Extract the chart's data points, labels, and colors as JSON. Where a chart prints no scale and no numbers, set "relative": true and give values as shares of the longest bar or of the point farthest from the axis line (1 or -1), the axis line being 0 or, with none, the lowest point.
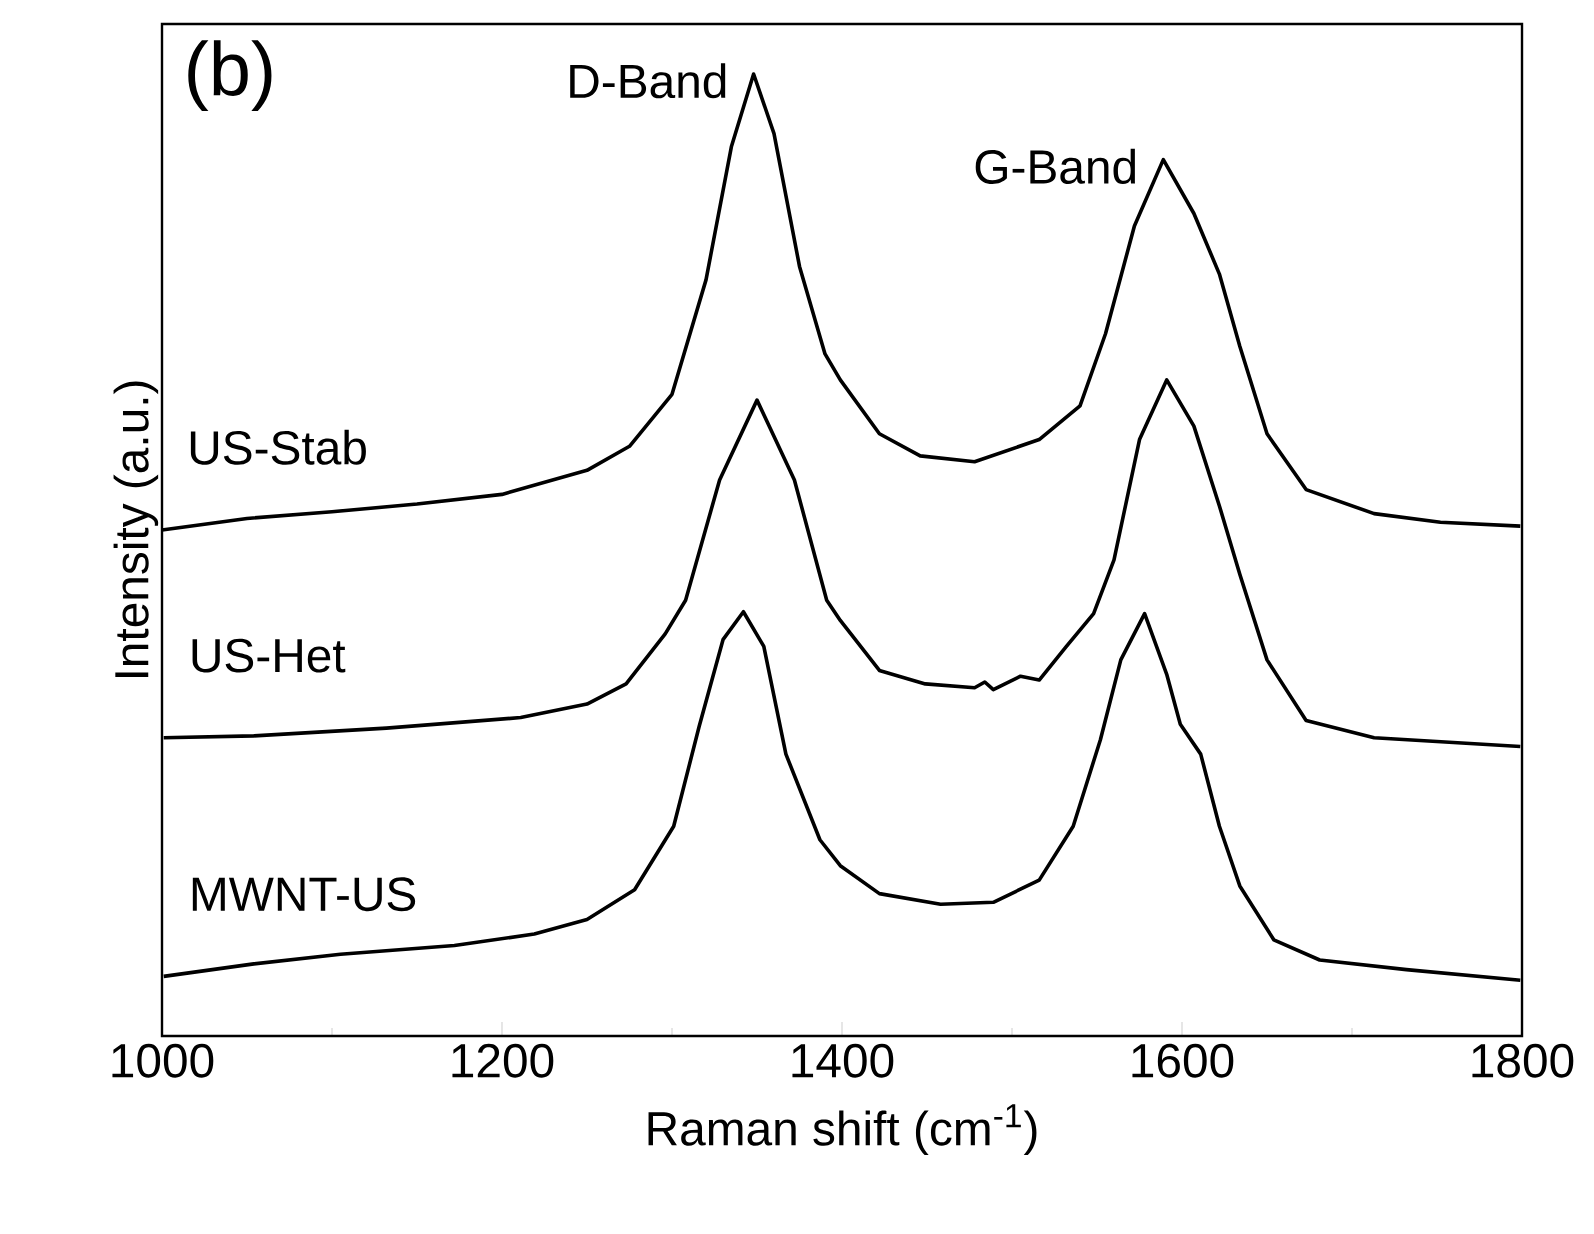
{
  "chart_data": {
    "type": "line",
    "relative": true,
    "marker": "none",
    "xlabel": "Raman shift (cm$^{-1}$)",
    "ylabel": "Intensity (a.u.)",
    "xlim": [
      1000,
      1800
    ],
    "xticks": [
      1000,
      1200,
      1400,
      1600,
      1800
    ],
    "annotations": [
      "(b)",
      {
        "text": "D-Band",
        "x": 1348,
        "y": 1.0
      },
      {
        "text": "G-Band",
        "x": 1589,
        "y": 0.911
      }
    ],
    "series": [
      {
        "name": "US-Stab",
        "color": "#000000",
        "x": [
          1000,
          1050,
          1100,
          1150,
          1200,
          1250,
          1275,
          1300,
          1320,
          1335,
          1348,
          1360,
          1375,
          1390,
          1399,
          1422,
          1446,
          1478,
          1516,
          1540,
          1555,
          1572,
          1589,
          1607,
          1622,
          1634,
          1650,
          1673,
          1713,
          1752,
          1799
        ],
        "values": [
          0.526,
          0.538,
          0.545,
          0.553,
          0.563,
          0.588,
          0.613,
          0.667,
          0.786,
          0.925,
          1.0,
          0.938,
          0.8,
          0.709,
          0.682,
          0.626,
          0.603,
          0.597,
          0.62,
          0.655,
          0.73,
          0.842,
          0.911,
          0.855,
          0.792,
          0.717,
          0.626,
          0.568,
          0.543,
          0.534,
          0.53
        ]
      },
      {
        "name": "US-Het",
        "color": "#000000",
        "x": [
          1001,
          1054,
          1132,
          1211,
          1250,
          1273,
          1296,
          1308,
          1328,
          1350,
          1372,
          1391,
          1399,
          1422,
          1449,
          1478,
          1484,
          1489,
          1505,
          1516,
          1532,
          1548,
          1560,
          1575,
          1591,
          1607,
          1622,
          1634,
          1650,
          1673,
          1713,
          1799
        ],
        "values": [
          0.31,
          0.312,
          0.32,
          0.331,
          0.345,
          0.366,
          0.418,
          0.453,
          0.578,
          0.661,
          0.578,
          0.453,
          0.432,
          0.38,
          0.366,
          0.362,
          0.368,
          0.36,
          0.374,
          0.37,
          0.405,
          0.439,
          0.495,
          0.62,
          0.682,
          0.634,
          0.551,
          0.48,
          0.391,
          0.328,
          0.31,
          0.301
        ]
      },
      {
        "name": "MWNT-US",
        "color": "#000000",
        "x": [
          1001,
          1054,
          1105,
          1172,
          1219,
          1250,
          1278,
          1301,
          1316,
          1330,
          1342,
          1354,
          1367,
          1387,
          1399,
          1422,
          1458,
          1489,
          1516,
          1536,
          1552,
          1564,
          1578,
          1591,
          1599,
          1611,
          1622,
          1634,
          1654,
          1681,
          1732,
          1799
        ],
        "values": [
          0.062,
          0.075,
          0.085,
          0.094,
          0.106,
          0.121,
          0.152,
          0.218,
          0.322,
          0.412,
          0.441,
          0.405,
          0.293,
          0.204,
          0.177,
          0.148,
          0.137,
          0.139,
          0.162,
          0.218,
          0.308,
          0.391,
          0.439,
          0.376,
          0.324,
          0.293,
          0.218,
          0.156,
          0.1,
          0.079,
          0.069,
          0.058
        ]
      }
    ]
  }
}
